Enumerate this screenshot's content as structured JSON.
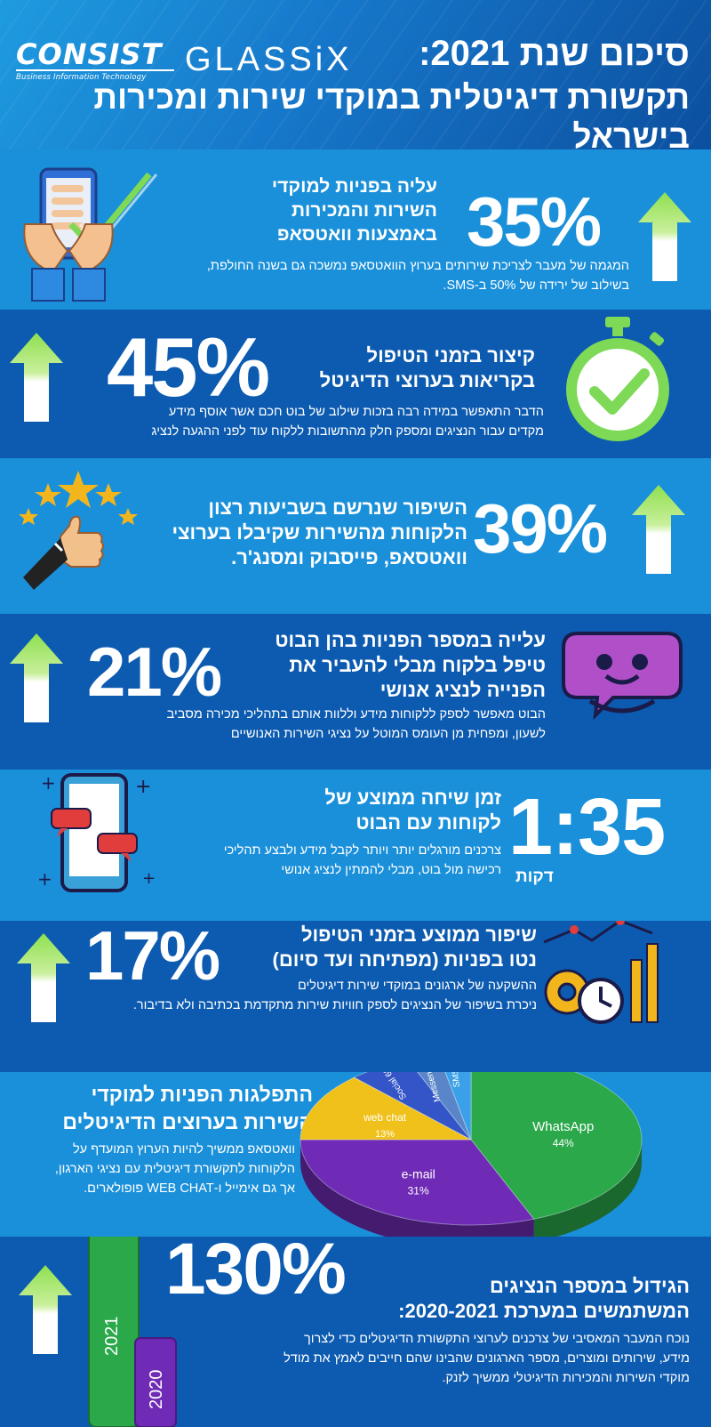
{
  "header": {
    "logo_consist": "CONSIST",
    "logo_consist_tagline": "Business Information Technology",
    "logo_glassix": "GLASSiX",
    "title": "סיכום שנת 2021:",
    "subtitle": "תקשורת דיגיטלית במוקדי שירות ומכירות בישראל"
  },
  "stats": [
    {
      "value": "35%",
      "headline": [
        "עליה בפניות למוקדי",
        "השירות והמכירות",
        "באמצעות וואטסאפ"
      ],
      "desc": [
        "המגמה של מעבר לצריכת שירותים בערוץ הוואטסאפ נמשכה גם בשנה החולפת,",
        "בשילוב של ירידה של 50% ב-SMS."
      ],
      "icon": "phone-chat-hands-icon"
    },
    {
      "value": "45%",
      "headline": [
        "קיצור בזמני הטיפול",
        "בקריאות בערוצי הדיגיטל"
      ],
      "desc": [
        "הדבר התאפשר במידה רבה בזכות שילוב של בוט חכם אשר אוסף מידע",
        "מקדים עבור הנציגים ומספק חלק מהתשובות ללקוח עוד לפני ההגעה לנציג"
      ],
      "icon": "stopwatch-check-icon"
    },
    {
      "value": "39%",
      "headline": [
        "השיפור שנרשם בשביעות רצון",
        "הלקוחות מהשירות שקיבלו בערוצי",
        "וואטסאפ, פייסבוק ומסנג'ר."
      ],
      "desc": [],
      "icon": "thumbs-up-stars-icon"
    },
    {
      "value": "21%",
      "headline": [
        "עלייה במספר הפניות בהן הבוט",
        "טיפל בלקוח מבלי להעביר את",
        "הפנייה לנציג אנושי"
      ],
      "desc": [
        "הבוט מאפשר לספק ללקוחות מידע וללוות אותם בתהליכי מכירה מסביב",
        "לשעון, ומפחית מן העומס המוטל על נציגי השירות האנושיים"
      ],
      "icon": "chatbot-face-icon"
    },
    {
      "value": "1:35",
      "unit": "דקות",
      "headline": [
        "זמן שיחה ממוצע של",
        "לקוחות עם הבוט"
      ],
      "desc": [
        "צרכנים מורגלים יותר ויותר לקבל מידע ולבצע תהליכי",
        "רכישה מול בוט, מבלי להמתין לנציג אנושי"
      ],
      "icon": "phone-messages-icon"
    },
    {
      "value": "17%",
      "headline": [
        "שיפור ממוצע בזמני הטיפול",
        "נטו בפניות (מפתיחה ועד סיום)"
      ],
      "desc": [
        "ההשקעה של ארגונים במוקדי שירות דיגיטלים",
        "ניכרת בשיפור של הנציגים לספק חוויות שירות מתקדמת בכתיבה ולא בדיבור."
      ],
      "icon": "gears-clock-chart-icon"
    }
  ],
  "distribution": {
    "headline": [
      "התפלגות הפניות למוקדי",
      "השירות בערוצים הדיגיטלים"
    ],
    "desc": [
      "וואטסאפ ממשיך להיות הערוץ המועדף על",
      "הלקוחות לתקשורת דיגיטלית עם נציגי הארגון,",
      "אך גם אימייל ו-WEB CHAT פופולארים."
    ]
  },
  "chart_data": {
    "type": "pie",
    "categories": [
      "WhatsApp",
      "e-mail",
      "web chat",
      "Social",
      "Messenger",
      "SMS"
    ],
    "values": [
      44,
      31,
      13,
      6,
      3,
      3
    ],
    "labels": [
      "44%",
      "31%",
      "13%",
      "Social 6%",
      "Messenger 3%",
      "SMS 3%"
    ],
    "colors": [
      "#2aa84a",
      "#6f2bb5",
      "#f0c11a",
      "#3355c8",
      "#5a86c9",
      "#3aa0e8"
    ]
  },
  "growth": {
    "value": "130%",
    "headline": [
      "הגידול במספר הנציגים",
      "המשתמשים במערכת 2020-2021:"
    ],
    "desc": [
      "נוכח המעבר המאסיבי של צרכנים לערוצי התקשורת הדיגיטלים כדי לצרוך",
      "מידע, שירותים ומוצרים, מספר הארגונים שהבינו שהם חייבים לאמץ את מודל",
      "מוקדי השירות והמכירות הדיגיטלי ממשיך לזנק."
    ],
    "bar_labels": [
      "2021",
      "2020"
    ],
    "bar_colors": [
      "#2aa84a",
      "#6f2bb5"
    ]
  },
  "colors": {
    "band_light": "#1a90da",
    "band_dark": "#0c5bb0",
    "arrow_green": "#7ed957",
    "arrow_white": "#ffffff"
  }
}
